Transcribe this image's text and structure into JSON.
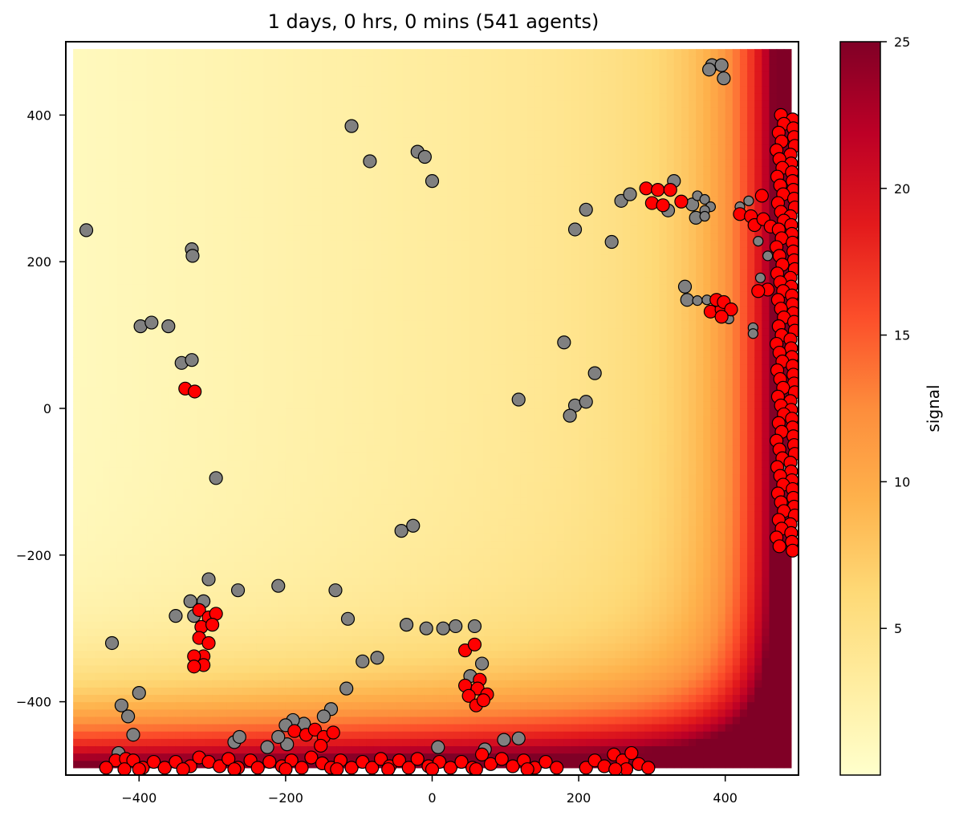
{
  "chart_data": {
    "type": "scatter",
    "title": "1 days, 0 hrs, 0 mins (541 agents)",
    "xlabel": "",
    "ylabel": "",
    "xlim": [
      -500,
      500
    ],
    "ylim": [
      -500,
      500
    ],
    "xticks": [
      -400,
      -200,
      0,
      200,
      400
    ],
    "yticks": [
      400,
      200,
      0,
      -200,
      -400
    ],
    "grid": false,
    "background_field": {
      "description_of_gradient": "signal increases toward the right edge and bottom edge",
      "cmap_colors": [
        "#ffffcc",
        "#ffeda0",
        "#fed976",
        "#feb24c",
        "#fd8d3c",
        "#fc4e2a",
        "#e31a1c",
        "#bd0026",
        "#800026"
      ],
      "vmin": 0,
      "vmax": 25
    },
    "colorbar": {
      "label": "signal",
      "ticks": [
        5,
        10,
        15,
        20,
        25
      ]
    },
    "series": [
      {
        "color": "#808080",
        "points": [
          [
            -472,
            243
          ],
          [
            -110,
            385
          ],
          [
            -85,
            337
          ],
          [
            -20,
            350
          ],
          [
            -10,
            343
          ],
          [
            0,
            310
          ],
          [
            -328,
            217
          ],
          [
            -327,
            208
          ],
          [
            -398,
            112
          ],
          [
            -383,
            117
          ],
          [
            -360,
            112
          ],
          [
            -342,
            62
          ],
          [
            -328,
            66
          ],
          [
            -295,
            -95
          ],
          [
            -42,
            -167
          ],
          [
            -26,
            -160
          ],
          [
            -305,
            -233
          ],
          [
            -265,
            -248
          ],
          [
            -210,
            -242
          ],
          [
            -132,
            -248
          ],
          [
            -115,
            -287
          ],
          [
            -330,
            -263
          ],
          [
            -312,
            -263
          ],
          [
            -350,
            -283
          ],
          [
            -325,
            -283
          ],
          [
            -437,
            -320
          ],
          [
            -35,
            -295
          ],
          [
            -8,
            -300
          ],
          [
            15,
            -300
          ],
          [
            32,
            -297
          ],
          [
            58,
            -297
          ],
          [
            -95,
            -345
          ],
          [
            -75,
            -340
          ],
          [
            -117,
            -382
          ],
          [
            68,
            -348
          ],
          [
            52,
            -365
          ],
          [
            -400,
            -388
          ],
          [
            -424,
            -405
          ],
          [
            -415,
            -420
          ],
          [
            -408,
            -445
          ],
          [
            -428,
            -470
          ],
          [
            -138,
            -410
          ],
          [
            -148,
            -420
          ],
          [
            -175,
            -430
          ],
          [
            -190,
            -425
          ],
          [
            -200,
            -432
          ],
          [
            -198,
            -458
          ],
          [
            -225,
            -462
          ],
          [
            -270,
            -455
          ],
          [
            -263,
            -448
          ],
          [
            -210,
            -448
          ],
          [
            8,
            -462
          ],
          [
            98,
            -452
          ],
          [
            118,
            -450
          ],
          [
            72,
            -465
          ],
          [
            180,
            90
          ],
          [
            222,
            48
          ],
          [
            118,
            12
          ],
          [
            195,
            4
          ],
          [
            210,
            9
          ],
          [
            188,
            -10
          ],
          [
            195,
            244
          ],
          [
            210,
            271
          ],
          [
            245,
            227
          ],
          [
            258,
            283
          ],
          [
            270,
            292
          ],
          [
            330,
            310
          ],
          [
            322,
            270
          ],
          [
            355,
            278
          ],
          [
            362,
            290
          ],
          [
            360,
            260
          ],
          [
            372,
            285
          ],
          [
            380,
            275
          ],
          [
            372,
            270
          ],
          [
            372,
            262
          ],
          [
            382,
            468
          ],
          [
            395,
            468
          ],
          [
            378,
            462
          ],
          [
            398,
            450
          ],
          [
            345,
            166
          ],
          [
            348,
            148
          ],
          [
            362,
            147
          ],
          [
            375,
            148
          ],
          [
            405,
            122
          ],
          [
            438,
            110
          ],
          [
            438,
            102
          ],
          [
            420,
            275
          ],
          [
            432,
            283
          ],
          [
            445,
            228
          ],
          [
            448,
            178
          ],
          [
            458,
            208
          ],
          [
            478,
            -84
          ]
        ]
      },
      {
        "color": "#ff0000",
        "points": [
          [
            -337,
            27
          ],
          [
            -324,
            23
          ],
          [
            -318,
            -275
          ],
          [
            -305,
            -285
          ],
          [
            -295,
            -280
          ],
          [
            -315,
            -298
          ],
          [
            -300,
            -295
          ],
          [
            -318,
            -313
          ],
          [
            -305,
            -320
          ],
          [
            -312,
            -338
          ],
          [
            -325,
            -338
          ],
          [
            -312,
            -350
          ],
          [
            -325,
            -352
          ],
          [
            45,
            -330
          ],
          [
            58,
            -322
          ],
          [
            45,
            -378
          ],
          [
            65,
            -370
          ],
          [
            62,
            -382
          ],
          [
            50,
            -392
          ],
          [
            75,
            -390
          ],
          [
            60,
            -405
          ],
          [
            70,
            -398
          ],
          [
            292,
            300
          ],
          [
            308,
            298
          ],
          [
            325,
            298
          ],
          [
            300,
            280
          ],
          [
            315,
            277
          ],
          [
            340,
            282
          ],
          [
            380,
            132
          ],
          [
            395,
            135
          ],
          [
            388,
            148
          ],
          [
            398,
            145
          ],
          [
            408,
            135
          ],
          [
            395,
            125
          ],
          [
            420,
            265
          ],
          [
            435,
            262
          ],
          [
            440,
            250
          ],
          [
            450,
            290
          ],
          [
            452,
            258
          ],
          [
            462,
            248
          ],
          [
            458,
            162
          ],
          [
            445,
            160
          ],
          [
            -432,
            -480
          ],
          [
            -418,
            -478
          ],
          [
            -408,
            -480
          ],
          [
            -395,
            -490
          ],
          [
            -380,
            -482
          ],
          [
            -365,
            -490
          ],
          [
            -350,
            -482
          ],
          [
            -330,
            -488
          ],
          [
            -318,
            -476
          ],
          [
            -305,
            -482
          ],
          [
            -290,
            -488
          ],
          [
            -278,
            -478
          ],
          [
            -265,
            -490
          ],
          [
            -248,
            -480
          ],
          [
            -238,
            -490
          ],
          [
            -222,
            -482
          ],
          [
            -205,
            -488
          ],
          [
            -192,
            -480
          ],
          [
            -178,
            -490
          ],
          [
            -165,
            -476
          ],
          [
            -150,
            -484
          ],
          [
            -138,
            -490
          ],
          [
            -125,
            -480
          ],
          [
            -110,
            -490
          ],
          [
            -95,
            -482
          ],
          [
            -82,
            -490
          ],
          [
            -70,
            -478
          ],
          [
            -58,
            -488
          ],
          [
            -45,
            -480
          ],
          [
            -32,
            -490
          ],
          [
            -20,
            -478
          ],
          [
            -5,
            -488
          ],
          [
            10,
            -482
          ],
          [
            25,
            -490
          ],
          [
            40,
            -482
          ],
          [
            55,
            -490
          ],
          [
            68,
            -472
          ],
          [
            80,
            -485
          ],
          [
            95,
            -478
          ],
          [
            110,
            -488
          ],
          [
            125,
            -480
          ],
          [
            140,
            -490
          ],
          [
            155,
            -482
          ],
          [
            170,
            -490
          ],
          [
            -188,
            -440
          ],
          [
            -172,
            -445
          ],
          [
            -160,
            -438
          ],
          [
            -148,
            -448
          ],
          [
            -135,
            -442
          ],
          [
            -152,
            -460
          ],
          [
            210,
            -490
          ],
          [
            222,
            -480
          ],
          [
            235,
            -488
          ],
          [
            248,
            -472
          ],
          [
            260,
            -480
          ],
          [
            272,
            -470
          ],
          [
            282,
            -485
          ],
          [
            295,
            -490
          ],
          [
            265,
            -492
          ],
          [
            250,
            -492
          ],
          [
            -420,
            -492
          ],
          [
            -445,
            -490
          ],
          [
            -400,
            -492
          ],
          [
            -340,
            -492
          ],
          [
            -270,
            -492
          ],
          [
            -200,
            -492
          ],
          [
            -130,
            -492
          ],
          [
            -60,
            -492
          ],
          [
            0,
            -492
          ],
          [
            60,
            -492
          ],
          [
            130,
            -492
          ]
        ]
      }
    ],
    "dense_right_column": {
      "color": "#ff0000",
      "x_range": [
        470,
        495
      ],
      "y_range": [
        -195,
        400
      ]
    }
  }
}
